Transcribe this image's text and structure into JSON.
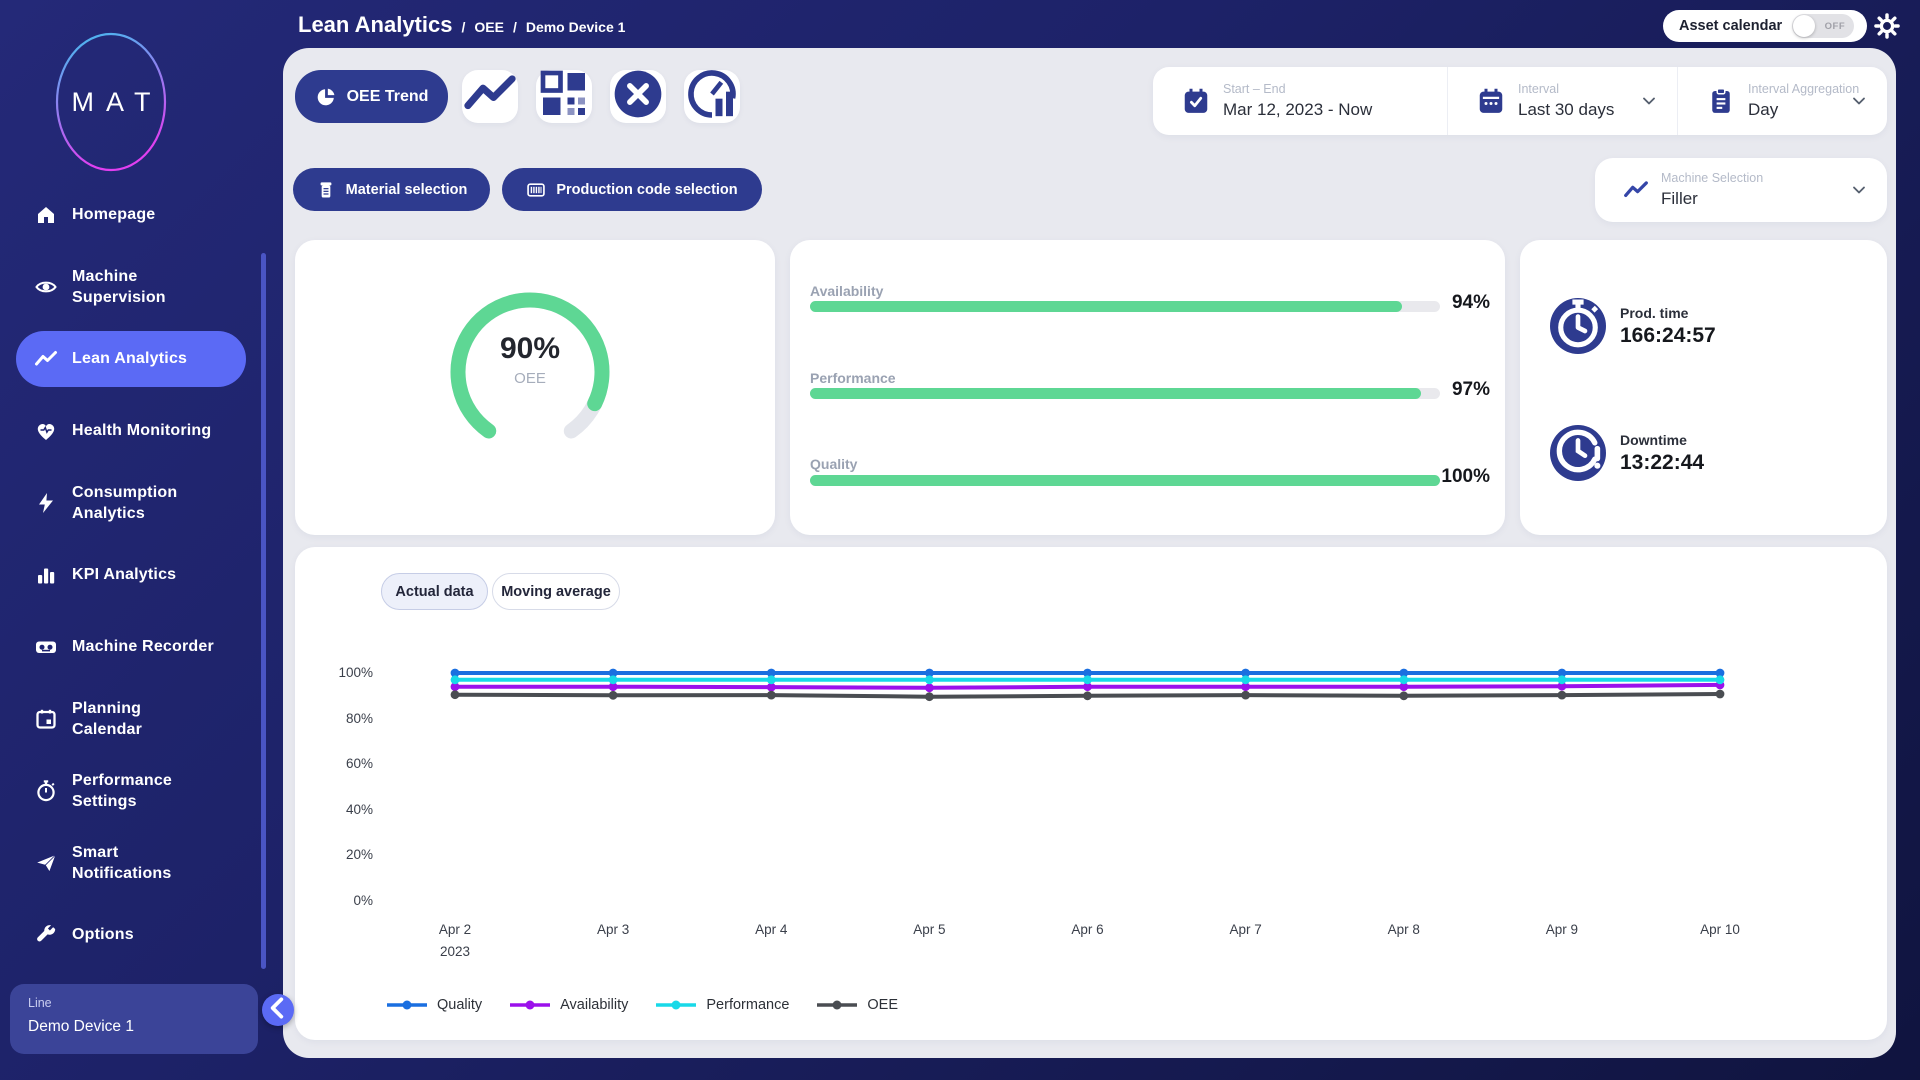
{
  "header": {
    "breadcrumb": {
      "title": "Lean Analytics",
      "sep1": "/",
      "item1": "OEE",
      "sep2": "/",
      "item2": "Demo Device 1"
    },
    "asset_calendar": {
      "label": "Asset calendar",
      "state": "OFF"
    }
  },
  "sidebar": {
    "logo_text": "MAT",
    "items": [
      {
        "label": "Homepage",
        "icon": "home",
        "active": false
      },
      {
        "label": "Machine\nSupervision",
        "icon": "eye",
        "active": false
      },
      {
        "label": "Lean Analytics",
        "icon": "trend",
        "active": true
      },
      {
        "label": "Health Monitoring",
        "icon": "heart",
        "active": false
      },
      {
        "label": "Consumption\nAnalytics",
        "icon": "bolt",
        "active": false
      },
      {
        "label": "KPI Analytics",
        "icon": "bars",
        "active": false
      },
      {
        "label": "Machine Recorder",
        "icon": "recorder",
        "active": false
      },
      {
        "label": "Planning\nCalendar",
        "icon": "calendar",
        "active": false
      },
      {
        "label": "Performance\nSettings",
        "icon": "stopwatch-small",
        "active": false
      },
      {
        "label": "Smart\nNotifications",
        "icon": "plane",
        "active": false
      },
      {
        "label": "Options",
        "icon": "wrench",
        "active": false
      }
    ],
    "device_card": {
      "label": "Line",
      "value": "Demo Device 1"
    }
  },
  "toolbar": {
    "primary_tab": {
      "label": "OEE Trend"
    },
    "icon_buttons": [
      "trend",
      "grid",
      "x-circle",
      "speedo-bars"
    ],
    "filters": [
      {
        "label": "Start – End",
        "value": "Mar 12, 2023 - Now",
        "icon": "cal-check",
        "has_chevron": false
      },
      {
        "label": "Interval",
        "value": "Last 30 days",
        "icon": "cal-dots",
        "has_chevron": true
      },
      {
        "label": "Interval Aggregation",
        "value": "Day",
        "icon": "clipboard",
        "has_chevron": true
      }
    ],
    "selection_buttons": [
      {
        "label": "Material selection",
        "icon": "material"
      },
      {
        "label": "Production code selection",
        "icon": "barcode"
      }
    ],
    "machine_selection": {
      "label": "Machine Selection",
      "value": "Filler"
    }
  },
  "kpi": {
    "gauge": {
      "value": 90,
      "display": "90%",
      "label": "OEE",
      "color": "#5ed794",
      "track_color": "#e4e6ec"
    },
    "bars": [
      {
        "label": "Availability",
        "value": 94,
        "display": "94%"
      },
      {
        "label": "Performance",
        "value": 97,
        "display": "97%"
      },
      {
        "label": "Quality",
        "value": 100,
        "display": "100%"
      }
    ],
    "times": [
      {
        "label": "Prod. time",
        "value": "166:24:57",
        "icon": "stopwatch"
      },
      {
        "label": "Downtime",
        "value": "13:22:44",
        "icon": "clock-alert"
      }
    ]
  },
  "chart_card": {
    "tabs": [
      {
        "label": "Actual data",
        "active": true
      },
      {
        "label": "Moving average",
        "active": false
      }
    ]
  },
  "chart_data": {
    "type": "line",
    "title": "",
    "x": [
      "Apr 2",
      "Apr 3",
      "Apr 4",
      "Apr 5",
      "Apr 6",
      "Apr 7",
      "Apr 8",
      "Apr 9",
      "Apr 10"
    ],
    "x_sub": [
      "2023",
      "",
      "",
      "",
      "",
      "",
      "",
      "",
      ""
    ],
    "series": [
      {
        "name": "Quality",
        "color": "#1a6fe0",
        "values": [
          100,
          100,
          100,
          100,
          100,
          100,
          100,
          100,
          100
        ]
      },
      {
        "name": "Availability",
        "color": "#9b10eb",
        "values": [
          94,
          94,
          93.8,
          93.5,
          94,
          94,
          94,
          94.2,
          94.8
        ]
      },
      {
        "name": "Performance",
        "color": "#18d9e8",
        "values": [
          97,
          97,
          97,
          97,
          97,
          97,
          97,
          97,
          97
        ]
      },
      {
        "name": "OEE",
        "color": "#4a4d52",
        "values": [
          90.5,
          90.2,
          90.3,
          89.6,
          90,
          90.3,
          90,
          90.3,
          90.8
        ]
      }
    ],
    "ylim": [
      0,
      100
    ],
    "yticks": [
      "100%",
      "80%",
      "60%",
      "40%",
      "20%",
      "0%"
    ],
    "grid": false,
    "legend_position": "bottom"
  },
  "colors": {
    "accent": "#5b6af5",
    "navy": "#2e3b8f",
    "green": "#5ed794",
    "panel_bg": "#e8e9ef"
  }
}
